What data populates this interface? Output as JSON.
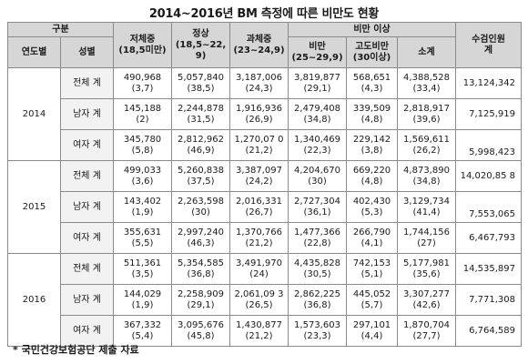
{
  "title": "2014~2016년 BM 측정에 따른 비만도 현황",
  "header": {
    "group": "구분",
    "year": "연도별",
    "gender": "성별",
    "obese_band": "비만 이상",
    "columns": [
      {
        "line1": "저체중",
        "line2": "(18,5미만)"
      },
      {
        "line1": "정상",
        "line2": "(18,5~22,9)"
      },
      {
        "line1": "과체중",
        "line2": "(23~24,9)"
      },
      {
        "line1": "비만",
        "line2": "(25~29,9)"
      },
      {
        "line1": "고도비만",
        "line2": "(30이상)"
      },
      {
        "line1": "소계",
        "line2": ""
      }
    ],
    "total_line1": "수검인원",
    "total_line2": "계"
  },
  "years": [
    {
      "year": "2014",
      "rows": [
        {
          "gender": "전체 계",
          "cells": [
            {
              "v": "490,968",
              "p": "(3,7)"
            },
            {
              "v": "5,057,840",
              "p": "(38,5)"
            },
            {
              "v": "3,187,006",
              "p": "(24,3)"
            },
            {
              "v": "3,819,877",
              "p": "(29,1)"
            },
            {
              "v": "568,651",
              "p": "(4,3)"
            },
            {
              "v": "4,388,528",
              "p": "(33,4)"
            }
          ],
          "total": "13,124,342"
        },
        {
          "gender": "남자 계",
          "cells": [
            {
              "v": "145,188",
              "p": "(2)"
            },
            {
              "v": "2,244,878",
              "p": "(31,5)"
            },
            {
              "v": "1,916,936",
              "p": "(26,9)"
            },
            {
              "v": "2,479,408",
              "p": "(34,8)"
            },
            {
              "v": "339,509",
              "p": "(4,8)"
            },
            {
              "v": "2,818,917",
              "p": "(39,6)"
            }
          ],
          "total": "7,125,919"
        },
        {
          "gender": "여자 계",
          "cells": [
            {
              "v": "345,780",
              "p": "(5,8)"
            },
            {
              "v": "2,812,962",
              "p": "(46,9)"
            },
            {
              "v": "1,270,07 0",
              "p": "(21,2)"
            },
            {
              "v": "1,340,469",
              "p": "(22,3)"
            },
            {
              "v": "229,142",
              "p": "(3,8)"
            },
            {
              "v": "1,569,611",
              "p": "(26,2)"
            }
          ],
          "total": "5,998,423"
        }
      ]
    },
    {
      "year": "2015",
      "rows": [
        {
          "gender": "전체 계",
          "cells": [
            {
              "v": "499,033",
              "p": "(3,6)"
            },
            {
              "v": "5,260,838",
              "p": "(37,5)"
            },
            {
              "v": "3,387,097",
              "p": "(24,2)"
            },
            {
              "v": "4,204,670",
              "p": "(30)"
            },
            {
              "v": "669,220",
              "p": "(4,8)"
            },
            {
              "v": "4,873,890",
              "p": "(34,8)"
            }
          ],
          "total": "14,020,85 8"
        },
        {
          "gender": "남자 계",
          "cells": [
            {
              "v": "143,402",
              "p": "(1,9)"
            },
            {
              "v": "2,263,598",
              "p": "(30)"
            },
            {
              "v": "2,016,331",
              "p": "(26,7)"
            },
            {
              "v": "2,727,304",
              "p": "(36,1)"
            },
            {
              "v": "402,430",
              "p": "(5,3)"
            },
            {
              "v": "3,129,734",
              "p": "(41,4)"
            }
          ],
          "total": "7,553,065"
        },
        {
          "gender": "여자 계",
          "cells": [
            {
              "v": "355,631",
              "p": "(5,5)"
            },
            {
              "v": "2,997,240",
              "p": "(46,3)"
            },
            {
              "v": "1,370,766",
              "p": "(21,2)"
            },
            {
              "v": "1,477,366",
              "p": "(22,8)"
            },
            {
              "v": "266,790",
              "p": "(4,1)"
            },
            {
              "v": "1,744,156",
              "p": "(27)"
            }
          ],
          "total": "6,467,793"
        }
      ]
    },
    {
      "year": "2016",
      "rows": [
        {
          "gender": "전체 계",
          "cells": [
            {
              "v": "511,361",
              "p": "(3,5)"
            },
            {
              "v": "5,354,585",
              "p": "(36,8)"
            },
            {
              "v": "3,491,970",
              "p": "(24)"
            },
            {
              "v": "4,435,828",
              "p": "(30,5)"
            },
            {
              "v": "742,153",
              "p": "(5,1)"
            },
            {
              "v": "5,177,981",
              "p": "(35,6)"
            }
          ],
          "total": "14,535,897"
        },
        {
          "gender": "남자 계",
          "cells": [
            {
              "v": "144,029",
              "p": "(1,9)"
            },
            {
              "v": "2,258,909",
              "p": "(29,1)"
            },
            {
              "v": "2,061,09 3",
              "p": "(26,5)"
            },
            {
              "v": "2,862,225",
              "p": "(36,8)"
            },
            {
              "v": "445,052",
              "p": "(5,7)"
            },
            {
              "v": "3,307,277",
              "p": "(42,6)"
            }
          ],
          "total": "7,771,308"
        },
        {
          "gender": "여자 계",
          "cells": [
            {
              "v": "367,332",
              "p": "(5,4)"
            },
            {
              "v": "3,095,676",
              "p": "(45,8)"
            },
            {
              "v": "1,430,877",
              "p": "(21,2)"
            },
            {
              "v": "1,573,603",
              "p": "(23,3)"
            },
            {
              "v": "297,101",
              "p": "(4,4)"
            },
            {
              "v": "1,870,704",
              "p": "(27,7)"
            }
          ],
          "total": "6,764,589"
        }
      ]
    }
  ],
  "footnote": "* 국민건강보험공단 제출 자료"
}
